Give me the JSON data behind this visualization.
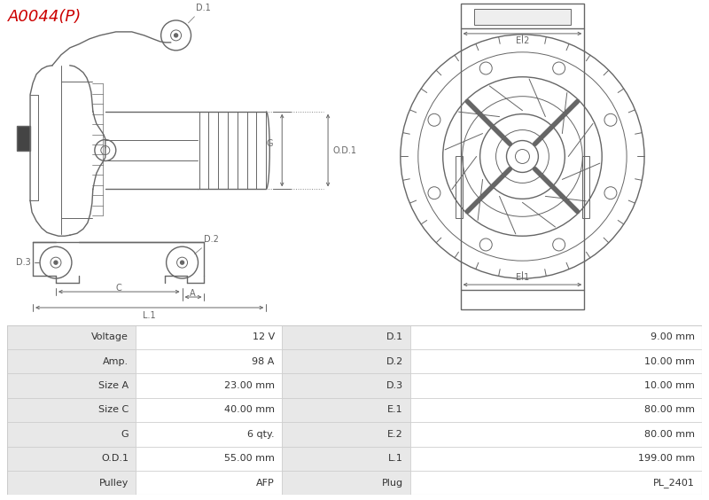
{
  "title": "A0044(P)",
  "title_color": "#cc0000",
  "bg_color": "#ffffff",
  "table_header_bg": "#e8e8e8",
  "table_row_bg1": "#ffffff",
  "table_border_color": "#cccccc",
  "diagram_line_color": "#666666",
  "table_data": [
    [
      "Voltage",
      "12 V",
      "D.1",
      "9.00 mm"
    ],
    [
      "Amp.",
      "98 A",
      "D.2",
      "10.00 mm"
    ],
    [
      "Size A",
      "23.00 mm",
      "D.3",
      "10.00 mm"
    ],
    [
      "Size C",
      "40.00 mm",
      "E.1",
      "80.00 mm"
    ],
    [
      "G",
      "6 qty.",
      "E.2",
      "80.00 mm"
    ],
    [
      "O.D.1",
      "55.00 mm",
      "L.1",
      "199.00 mm"
    ],
    [
      "Pulley",
      "AFP",
      "Plug",
      "PL_2401"
    ]
  ]
}
